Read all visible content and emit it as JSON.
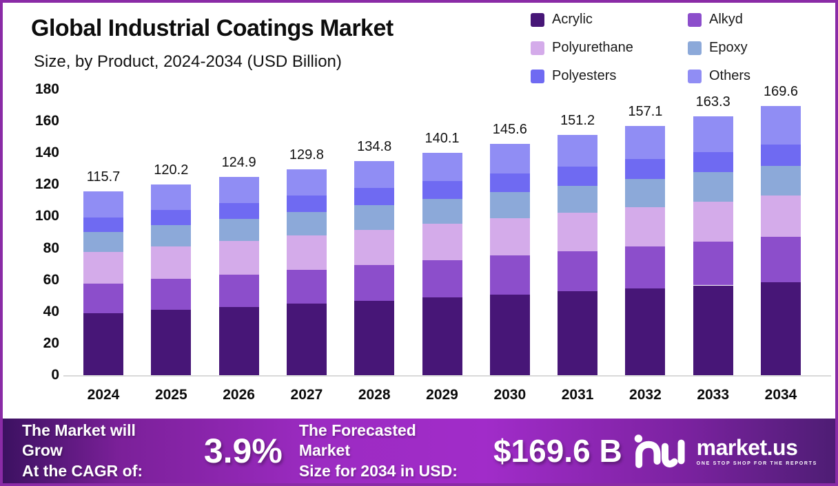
{
  "frame": {
    "border_color": "#8a2ba6",
    "background": "#ffffff"
  },
  "header": {
    "title": "Global Industrial Coatings Market",
    "subtitle": "Size, by Product, 2024-2034 (USD Billion)"
  },
  "chart_data": {
    "type": "bar",
    "stacked": true,
    "title": "Global Industrial Coatings Market Size, by Product, 2024-2034 (USD Billion)",
    "categories": [
      "2024",
      "2025",
      "2026",
      "2027",
      "2028",
      "2029",
      "2030",
      "2031",
      "2032",
      "2033",
      "2034"
    ],
    "series": [
      {
        "name": "Acrylic",
        "color": "#471677",
        "values": [
          39.2,
          41.1,
          43.0,
          45.0,
          46.9,
          48.9,
          50.8,
          52.7,
          54.7,
          56.6,
          58.5
        ]
      },
      {
        "name": "Alkyd",
        "color": "#8c4ecb",
        "values": [
          18.5,
          19.5,
          20.5,
          21.5,
          22.5,
          23.5,
          24.5,
          25.5,
          26.5,
          27.5,
          28.5
        ]
      },
      {
        "name": "Polyurethane",
        "color": "#d4abea",
        "values": [
          19.8,
          20.4,
          21.0,
          21.7,
          22.3,
          22.9,
          23.5,
          24.1,
          24.8,
          25.4,
          26.0
        ]
      },
      {
        "name": "Epoxy",
        "color": "#8ca9d9",
        "values": [
          12.8,
          13.4,
          14.0,
          14.7,
          15.3,
          15.9,
          16.5,
          17.1,
          17.8,
          18.4,
          19.0
        ]
      },
      {
        "name": "Polyesters",
        "color": "#6f6af2",
        "values": [
          9.2,
          9.6,
          10.0,
          10.4,
          10.8,
          11.2,
          11.6,
          12.0,
          12.4,
          12.8,
          13.2
        ]
      },
      {
        "name": "Others",
        "color": "#908df4",
        "values": [
          16.2,
          16.2,
          16.4,
          16.5,
          17.0,
          17.7,
          18.7,
          19.8,
          20.9,
          22.6,
          24.4
        ]
      }
    ],
    "totals": [
      115.7,
      120.2,
      124.9,
      129.8,
      134.8,
      140.1,
      145.6,
      151.2,
      157.1,
      163.3,
      169.6
    ],
    "xlabel": "",
    "ylabel": "",
    "y_axis": {
      "min": 0,
      "max": 180,
      "tick_step": 20,
      "ticks": [
        0,
        20,
        40,
        60,
        80,
        100,
        120,
        140,
        160,
        180
      ]
    },
    "grid": false,
    "legend_position": "top-right",
    "data_labels": "totals-above-bars"
  },
  "footer": {
    "cagr_label_line1": "The Market will Grow",
    "cagr_label_line2": "At the CAGR of:",
    "cagr_value": "3.9%",
    "forecast_label_line1": "The Forecasted Market",
    "forecast_label_line2": "Size for 2034 in USD:",
    "forecast_value": "$169.6 B",
    "brand": {
      "name": "market.us",
      "tagline": "ONE STOP SHOP FOR THE REPORTS"
    },
    "gradient": [
      "#3c1161",
      "#a12cc9",
      "#4e1d74"
    ]
  }
}
